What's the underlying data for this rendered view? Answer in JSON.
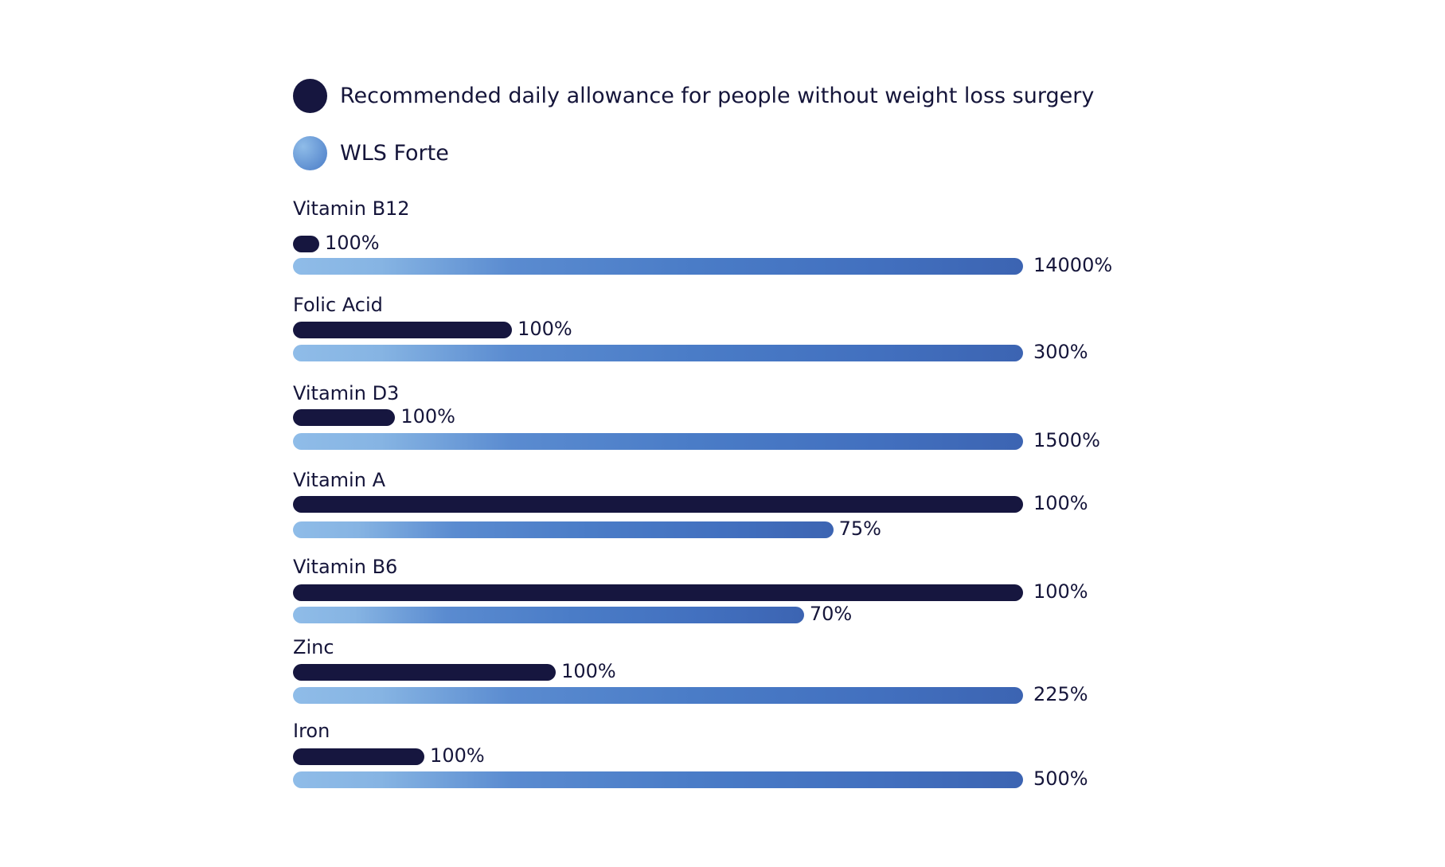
{
  "chart_data": {
    "type": "bar",
    "orientation": "horizontal",
    "colors": {
      "rda": "#16163f",
      "wls_forte_start": "#8fbce8",
      "wls_forte_end": "#3c64b2"
    },
    "legend": [
      {
        "name": "Recommended daily allowance for people without weight loss surgery",
        "color": "#16163f"
      },
      {
        "name": "WLS Forte",
        "color": "#5a8bd0"
      }
    ],
    "legend_placement": "top-left",
    "grid": false,
    "categories": [
      "Vitamin B12",
      "Folic Acid",
      "Vitamin D3",
      "Vitamin A",
      "Vitamin B6",
      "Zinc",
      "Iron"
    ],
    "series": [
      {
        "name": "Recommended daily allowance for people without weight loss surgery",
        "values": [
          100,
          100,
          100,
          100,
          100,
          100,
          100
        ],
        "labels": [
          "100%",
          "100%",
          "100%",
          "100%",
          "100%",
          "100%",
          "100%"
        ],
        "fill": [
          0.036,
          0.3,
          0.14,
          1.0,
          1.0,
          0.36,
          0.18
        ]
      },
      {
        "name": "WLS Forte",
        "values": [
          14000,
          300,
          1500,
          75,
          70,
          225,
          500
        ],
        "labels": [
          "14000%",
          "300%",
          "1500%",
          "75%",
          "70%",
          "225%",
          "500%"
        ],
        "fill": [
          1.0,
          1.0,
          1.0,
          0.74,
          0.7,
          1.0,
          1.0
        ]
      }
    ]
  }
}
